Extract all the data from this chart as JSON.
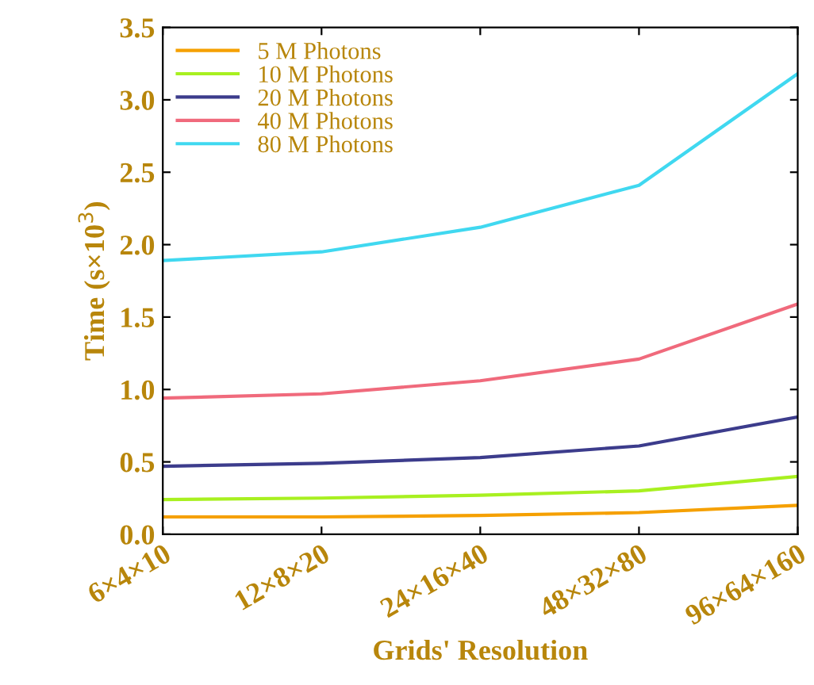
{
  "chart_data": {
    "type": "line",
    "xlabel": "Grids' Resolution",
    "ylabel": "Time (s×10$^{3}$)",
    "categories": [
      "6×4×10",
      "12×8×20",
      "24×16×40",
      "48×32×80",
      "96×64×160"
    ],
    "series": [
      {
        "name": "5 M Photons",
        "color": "#f5a000",
        "values": [
          0.12,
          0.12,
          0.13,
          0.15,
          0.2
        ]
      },
      {
        "name": "10 M Photons",
        "color": "#a8f020",
        "values": [
          0.24,
          0.25,
          0.27,
          0.3,
          0.4
        ]
      },
      {
        "name": "20 M Photons",
        "color": "#3c3c8c",
        "values": [
          0.47,
          0.49,
          0.53,
          0.61,
          0.81
        ]
      },
      {
        "name": "40 M Photons",
        "color": "#f06a7c",
        "values": [
          0.94,
          0.97,
          1.06,
          1.21,
          1.59
        ]
      },
      {
        "name": "80 M Photons",
        "color": "#40d8f0",
        "values": [
          1.89,
          1.95,
          2.12,
          2.41,
          3.18
        ]
      }
    ],
    "ylim": [
      0,
      3.5
    ],
    "yticks": [
      {
        "value": 0,
        "label": "0.0"
      },
      {
        "value": 0.5,
        "label": "0.5"
      },
      {
        "value": 1,
        "label": "1.0"
      },
      {
        "value": 1.5,
        "label": "1.5"
      },
      {
        "value": 2,
        "label": "2.0"
      },
      {
        "value": 2.5,
        "label": "2.5"
      },
      {
        "value": 3,
        "label": "3.0"
      },
      {
        "value": 3.5,
        "label": "3.5"
      }
    ],
    "legend": "top left",
    "grid": false,
    "marker": "none",
    "line_style": "solid"
  }
}
